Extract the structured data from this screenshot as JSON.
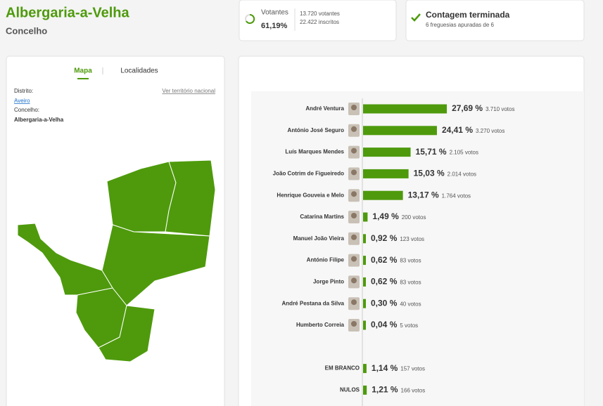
{
  "header": {
    "title": "Albergaria-a-Velha",
    "subtitle": "Concelho"
  },
  "turnout": {
    "label": "Votantes",
    "value": "61,19%",
    "voters": "13.720 votantes",
    "registered": "22.422 inscritos"
  },
  "count": {
    "title": "Contagem terminada",
    "detail": "6 freguesias apuradas de 6"
  },
  "tabs": [
    "Mapa",
    "Localidades"
  ],
  "location": {
    "district_label": "Distrito:",
    "district": "Aveiro",
    "link": "Ver território nacional",
    "municipality_label": "Concelho:",
    "municipality": "Albergaria-a-Velha"
  },
  "chart_data": {
    "type": "bar",
    "categories": [
      "André Ventura",
      "António José Seguro",
      "Luís Marques Mendes",
      "João Cotrim de Figueiredo",
      "Henrique Gouveia e Melo",
      "Catarina Martins",
      "Manuel João Vieira",
      "António Filipe",
      "Jorge Pinto",
      "André Pestana da Silva",
      "Humberto Correia",
      "EM BRANCO",
      "NULOS"
    ],
    "values": [
      27.69,
      24.41,
      15.71,
      15.03,
      13.17,
      1.49,
      0.92,
      0.62,
      0.62,
      0.3,
      0.04,
      1.14,
      1.21
    ],
    "value_labels": [
      "27,69 %",
      "24,41 %",
      "15,71 %",
      "15,03 %",
      "13,17 %",
      "1,49 %",
      "0,92 %",
      "0,62 %",
      "0,62 %",
      "0,30 %",
      "0,04 %",
      "1,14 %",
      "1,21 %"
    ],
    "vote_labels": [
      "3.710 votos",
      "3.270 votos",
      "2.105 votos",
      "2.014 votos",
      "1.764 votos",
      "200 votos",
      "123 votos",
      "83 votos",
      "83 votos",
      "40 votos",
      "5 votos",
      "157 votos",
      "166 votos"
    ],
    "color": "#4e9a0c"
  }
}
